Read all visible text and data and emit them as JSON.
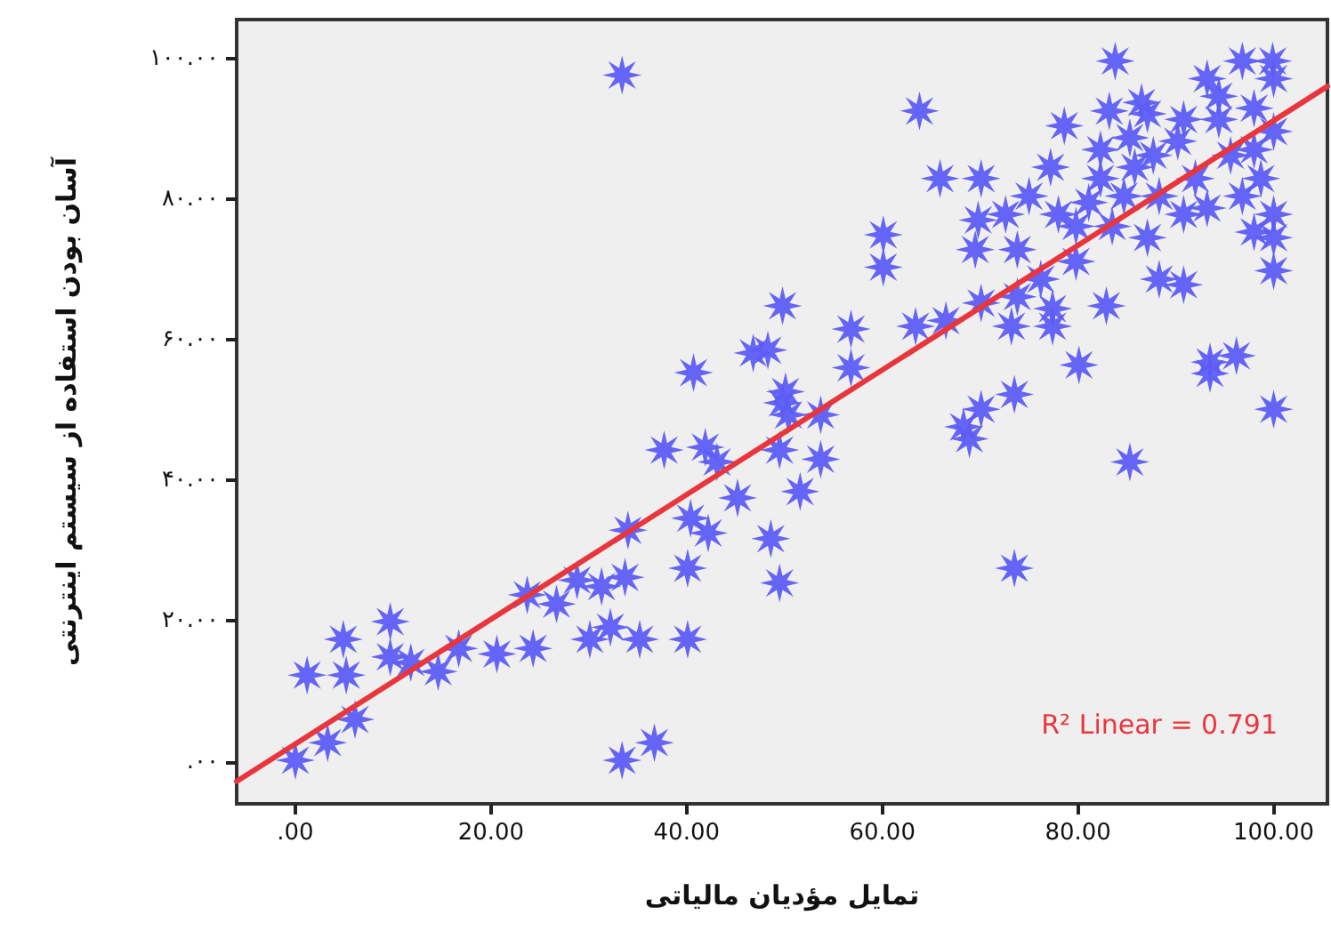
{
  "chart_data": {
    "type": "scatter",
    "xlabel": "تمایل مؤدیان مالیاتی",
    "ylabel": "آسان بودن استفاده از سیستم اینترنتی",
    "xlim": [
      -6,
      105.5
    ],
    "ylim": [
      -6,
      105.5
    ],
    "xticks": [
      {
        "value": 0,
        "label": ".00"
      },
      {
        "value": 20,
        "label": "20.00"
      },
      {
        "value": 40,
        "label": "40.00"
      },
      {
        "value": 60,
        "label": "60.00"
      },
      {
        "value": 80,
        "label": "80.00"
      },
      {
        "value": 100,
        "label": "100.00"
      }
    ],
    "yticks": [
      {
        "value": 0,
        "label": ".۰۰"
      },
      {
        "value": 20,
        "label": "۲۰.۰۰"
      },
      {
        "value": 40,
        "label": "۴۰.۰۰"
      },
      {
        "value": 60,
        "label": "۶۰.۰۰"
      },
      {
        "value": 80,
        "label": "۸۰.۰۰"
      },
      {
        "value": 100,
        "label": "۱۰۰.۰۰"
      }
    ],
    "grid": false,
    "marker": "star",
    "annotations": [
      "R² Linear = 0.791"
    ],
    "series": [
      {
        "color": "#5c5cf5",
        "x": [
          33.4,
          0,
          3.3,
          6.1,
          1.2,
          5.2,
          4.9,
          9.7,
          9.7,
          11.8,
          14.6,
          16.7,
          20.6,
          24.3,
          23.7,
          26.7,
          28.8,
          31.3,
          33.7,
          30.1,
          32.2,
          35.2,
          40.1,
          33.4,
          36.7,
          34,
          40.1,
          40.4,
          42.2,
          45.2,
          37.7,
          41.9,
          43.1,
          40.7,
          46.8,
          48.6,
          49.5,
          49.8,
          49.8,
          49.5,
          48.3,
          50.1,
          50.4,
          53.7,
          53.7,
          51.6,
          56.8,
          56.8,
          60.1,
          60.1,
          63.8,
          65.9,
          70.1,
          69.8,
          69.5,
          63.4,
          66.5,
          70.1,
          68.3,
          68.9,
          70.1,
          73.5,
          73.5,
          73.8,
          73.8,
          73.2,
          77.2,
          77.4,
          77.4,
          78.6,
          80.1,
          82.9,
          85.3,
          83.8,
          83.2,
          79.8,
          82.3,
          83.5,
          85.3,
          87.1,
          88.3,
          90.2,
          88.3,
          90.8,
          87.1,
          92,
          93.5,
          93.5,
          96.2,
          100,
          100,
          93.2,
          96.8,
          99.9,
          94.4,
          98,
          100,
          95.6,
          98.7,
          100,
          100,
          93.2,
          90.8,
          98,
          85.8,
          94.4,
          100,
          86.5,
          82.3,
          81.1,
          84.7,
          78,
          75,
          72.6,
          76.2,
          79.8,
          87.7,
          90.8,
          98,
          96.8
        ],
        "values": [
          97.6,
          0.2,
          2.7,
          6,
          12.3,
          12.3,
          17.4,
          19.9,
          14.9,
          14.1,
          12.8,
          16.1,
          15.3,
          16.1,
          23.7,
          22.4,
          25.8,
          24.9,
          26.2,
          17.4,
          19.1,
          17.4,
          17.4,
          0.2,
          2.7,
          32.9,
          27.5,
          34.6,
          32.5,
          37.5,
          44.3,
          44.7,
          42.6,
          55.3,
          58.1,
          31.7,
          25.4,
          64.8,
          51,
          44.3,
          58.5,
          52.6,
          49.3,
          49.3,
          43,
          38.4,
          61.5,
          56,
          74.9,
          70.3,
          92.5,
          82.9,
          82.9,
          77,
          72.8,
          61.9,
          62.7,
          65.2,
          47.6,
          45.9,
          50.1,
          52.2,
          27.5,
          72.8,
          66.1,
          61.9,
          84.5,
          64.4,
          61.9,
          90.4,
          56.4,
          64.8,
          42.6,
          99.6,
          92.5,
          71.1,
          82.9,
          76.1,
          88.7,
          92.1,
          80.4,
          88.2,
          68.6,
          67.8,
          74.5,
          82.9,
          56.8,
          55.2,
          57.7,
          50.1,
          69.8,
          97.1,
          99.6,
          99.6,
          91.3,
          92.9,
          89.6,
          86.2,
          82.9,
          77.8,
          74.5,
          78.7,
          77.8,
          75.3,
          84.5,
          94.6,
          97.1,
          93.7,
          87,
          79.5,
          80.4,
          77.8,
          80.4,
          77.8,
          68.6,
          76.1,
          86.2,
          91.3,
          87,
          80.4
        ]
      },
      {
        "type": "line",
        "color": "#e8363c",
        "marker": "none",
        "x": [
          -6,
          105.5
        ],
        "values": [
          -2.8,
          96
        ]
      }
    ]
  }
}
